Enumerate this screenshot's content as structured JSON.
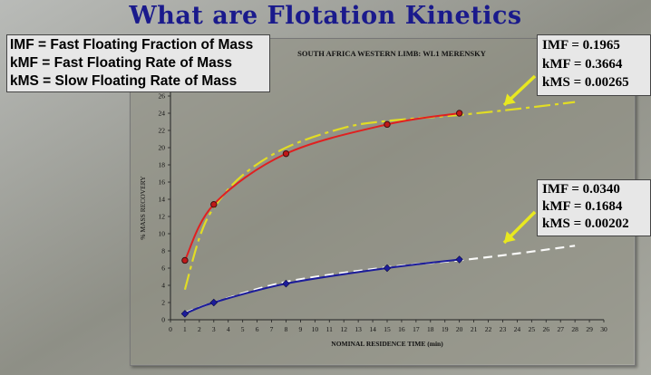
{
  "slide_title": "What are Flotation Kinetics",
  "definitions": [
    "IMF = Fast Floating Fraction of Mass",
    "kMF = Fast Floating Rate of Mass",
    "kMS = Slow Floating Rate of Mass"
  ],
  "params_upper": [
    "IMF  = 0.1965",
    "kMF = 0.3664",
    "kMS = 0.00265"
  ],
  "params_lower": [
    "IMF  = 0.0340",
    "kMF = 0.1684",
    "kMS = 0.00202"
  ],
  "colors": {
    "upper": "#e02020",
    "lower": "#1c1c9a",
    "upper_fit": "#e6e020",
    "lower_fit": "#ffffff",
    "arrow": "#e8e820"
  },
  "chart_data": {
    "type": "line",
    "title": "SOUTH AFRICA WESTERN LIMB: WL1 MERENSKY",
    "xlabel": "NOMINAL RESIDENCE TIME (min)",
    "ylabel": "% MASS RECOVERY",
    "xlim": [
      0,
      30
    ],
    "ylim": [
      0,
      26
    ],
    "x_ticks": [
      0,
      1,
      2,
      3,
      4,
      5,
      6,
      7,
      8,
      9,
      10,
      11,
      12,
      13,
      14,
      15,
      16,
      17,
      18,
      19,
      20,
      21,
      22,
      23,
      24,
      25,
      26,
      27,
      28,
      29,
      30
    ],
    "y_ticks": [
      0,
      2,
      4,
      6,
      8,
      10,
      12,
      14,
      16,
      18,
      20,
      22,
      24,
      26
    ],
    "grid": false,
    "series": [
      {
        "x": [
          1,
          3,
          8,
          15,
          20
        ],
        "y": [
          6.9,
          13.4,
          19.3,
          22.7,
          24.0
        ]
      },
      {
        "x": [
          1,
          3,
          8,
          15,
          20
        ],
        "y": [
          0.7,
          2.0,
          4.2,
          6.0,
          7.0
        ]
      }
    ],
    "fits": [
      {
        "x": [
          1,
          2,
          3,
          5,
          8,
          12,
          15,
          20,
          24,
          28
        ],
        "y": [
          3.5,
          9.5,
          13.0,
          16.8,
          20.0,
          22.3,
          23.1,
          23.8,
          24.5,
          25.3
        ]
      },
      {
        "x": [
          1,
          3,
          8,
          15,
          20,
          24,
          28
        ],
        "y": [
          0.8,
          2.0,
          4.4,
          6.1,
          6.9,
          7.7,
          8.6
        ]
      }
    ]
  }
}
